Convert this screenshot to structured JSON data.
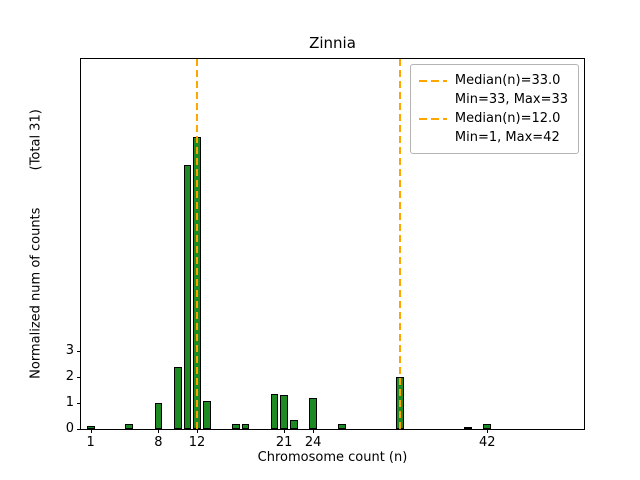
{
  "chart_data": {
    "type": "bar",
    "title": "Zinnia",
    "xlabel": "Chromosome count (n)",
    "ylabel": "Normalized num of counts         (Total 31)",
    "bar_color": "#1e8b22",
    "line_color": "#ffa500",
    "xlim": [
      0,
      52
    ],
    "ylim": [
      0,
      14.3
    ],
    "bar_width_units": 0.8,
    "xticks": [
      1,
      8,
      12,
      21,
      24,
      42
    ],
    "yticks": [
      0,
      1,
      2,
      3
    ],
    "bars": [
      {
        "x": 1,
        "h": 0.13
      },
      {
        "x": 5,
        "h": 0.19
      },
      {
        "x": 8,
        "h": 1.0
      },
      {
        "x": 10,
        "h": 2.4
      },
      {
        "x": 11,
        "h": 10.2
      },
      {
        "x": 12,
        "h": 11.3
      },
      {
        "x": 13,
        "h": 1.1
      },
      {
        "x": 16,
        "h": 0.19
      },
      {
        "x": 17,
        "h": 0.19
      },
      {
        "x": 20,
        "h": 1.35
      },
      {
        "x": 21,
        "h": 1.3
      },
      {
        "x": 22,
        "h": 0.35
      },
      {
        "x": 24,
        "h": 1.2
      },
      {
        "x": 27,
        "h": 0.19
      },
      {
        "x": 33,
        "h": 2.0
      },
      {
        "x": 40,
        "h": 0.06
      },
      {
        "x": 42,
        "h": 0.19
      }
    ],
    "median_lines": [
      {
        "x": 12
      },
      {
        "x": 33
      }
    ],
    "legend_position": "upper right",
    "grid": false,
    "legend": [
      {
        "label": "Median(n)=33.0",
        "sub": "Min=33, Max=33"
      },
      {
        "label": "Median(n)=12.0",
        "sub": "Min=1, Max=42"
      }
    ]
  }
}
